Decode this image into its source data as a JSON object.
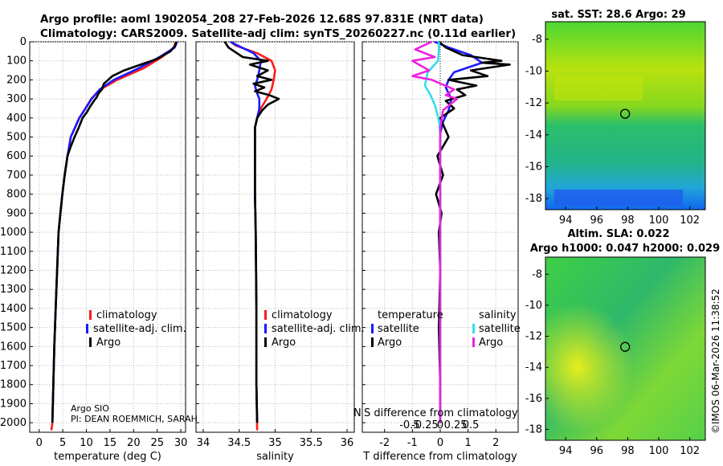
{
  "header": {
    "line1": "Argo profile: aoml 1902054_208 27-Feb-2026 12.68S 97.831E (NRT data)",
    "line2": "Climatology: CARS2009. Satellite-adj clim: synTS_20260227.nc (0.11d earlier)"
  },
  "colors": {
    "climatology": "#ff1a1a",
    "satellite_adj": "#1a1aff",
    "argo": "#000000",
    "sat_T": "#33ddee",
    "argo_S": "#ee22dd"
  },
  "legends": {
    "temp": [
      "climatology",
      "satellite-adj. clim.",
      "Argo"
    ],
    "sal": [
      "climatology",
      "satellite-adj. clim.",
      "Argo"
    ],
    "diff_temp_title": "temperature",
    "diff_temp": [
      "satellite",
      "Argo"
    ],
    "diff_sal_title": "salinity",
    "diff_sal": [
      "satellite",
      "Argo"
    ]
  },
  "notes": {
    "argo_sio": "Argo SIO",
    "pi": "PI: DEAN ROEMMICH, SARAH",
    "s_diff_label": "S difference from climatology",
    "s_diff_ticks": [
      "-0.5",
      "-0.25",
      "0",
      "0.25",
      "0.5"
    ],
    "overflow_char": "N"
  },
  "maps": {
    "sst_title": "sat. SST: 28.6 Argo: 29",
    "sla_title1": "Altim. SLA: 0.022",
    "sla_title2": "Argo h1000: 0.047 h2000: 0.029",
    "lat_ticks": [
      "-8",
      "-10",
      "-12",
      "-14",
      "-16",
      "-18"
    ],
    "lon_ticks": [
      "94",
      "96",
      "98",
      "100",
      "102"
    ],
    "float_lon": 97.831,
    "float_lat": -12.68,
    "credit": "©IMOS 06-Mar-2026 11:38:52"
  },
  "chart_data": [
    {
      "type": "line",
      "panel": "temperature",
      "xlabel": "temperature (deg C)",
      "xlim": [
        -2,
        31
      ],
      "xticks": [
        0,
        5,
        10,
        15,
        20,
        25,
        30
      ],
      "ylim": [
        0,
        2050
      ],
      "yticks": [
        0,
        100,
        200,
        300,
        400,
        500,
        600,
        700,
        800,
        900,
        1000,
        1100,
        1200,
        1300,
        1400,
        1500,
        1600,
        1700,
        1800,
        1900,
        2000
      ],
      "series": [
        {
          "name": "climatology",
          "color": "climatology",
          "x": [
            29.0,
            28.5,
            26.0,
            22.0,
            16.5,
            13.0,
            11.0,
            9.8,
            8.5,
            7.6,
            6.7,
            6.0,
            5.4,
            4.9,
            4.5,
            4.1,
            3.8,
            3.5,
            3.2,
            3.0,
            2.8,
            2.6
          ],
          "y": [
            0,
            30,
            80,
            140,
            200,
            250,
            300,
            350,
            400,
            450,
            500,
            600,
            700,
            800,
            900,
            1000,
            1200,
            1400,
            1600,
            1800,
            2000,
            2040
          ]
        },
        {
          "name": "satellite-adj. clim.",
          "color": "satellite_adj",
          "x": [
            29.2,
            28.7,
            25.5,
            21.0,
            15.8,
            12.8,
            11.1,
            9.8,
            8.5,
            7.6,
            6.7,
            6.0,
            5.4,
            4.9,
            4.5,
            4.1,
            3.8,
            3.5,
            3.2,
            3.0,
            2.8
          ],
          "y": [
            0,
            30,
            80,
            140,
            200,
            250,
            300,
            350,
            400,
            450,
            500,
            600,
            700,
            800,
            900,
            1000,
            1200,
            1400,
            1600,
            1800,
            2000
          ]
        },
        {
          "name": "Argo",
          "color": "argo",
          "x": [
            29.0,
            28.8,
            27.8,
            25.0,
            21.5,
            18.0,
            15.5,
            13.7,
            13.3,
            12.6,
            12.2,
            11.6,
            10.8,
            10.1,
            9.2,
            8.4,
            7.5,
            6.7,
            6.0,
            5.4,
            4.9,
            4.5,
            4.1,
            3.8,
            3.5,
            3.2,
            3.0,
            2.8
          ],
          "y": [
            0,
            20,
            50,
            90,
            120,
            150,
            180,
            220,
            250,
            270,
            290,
            310,
            340,
            370,
            400,
            450,
            500,
            550,
            600,
            700,
            800,
            900,
            1000,
            1200,
            1400,
            1600,
            1800,
            2000
          ]
        }
      ]
    },
    {
      "type": "line",
      "panel": "salinity",
      "xlabel": "salinity",
      "xlim": [
        33.9,
        36.1
      ],
      "xticks": [
        34,
        34.5,
        35,
        35.5,
        36
      ],
      "xtick_labels": [
        "34",
        "34.5",
        "35",
        "35.5",
        "36"
      ],
      "ylim": [
        0,
        2050
      ],
      "series": [
        {
          "name": "climatology",
          "color": "climatology",
          "x": [
            34.38,
            34.45,
            34.75,
            34.95,
            35.0,
            34.98,
            34.95,
            34.88,
            34.8,
            34.75,
            34.72,
            34.72,
            34.72,
            34.73,
            34.74,
            34.74,
            34.75
          ],
          "y": [
            0,
            20,
            60,
            100,
            150,
            200,
            250,
            300,
            350,
            400,
            450,
            600,
            800,
            1000,
            1400,
            1800,
            2040
          ]
        },
        {
          "name": "satellite-adj. clim.",
          "color": "satellite_adj",
          "x": [
            34.38,
            34.48,
            34.7,
            34.8,
            34.78,
            34.75,
            34.72,
            34.74,
            34.78,
            34.78,
            34.75,
            34.72,
            34.72,
            34.72,
            34.73,
            34.74,
            34.74,
            34.75
          ],
          "y": [
            0,
            20,
            60,
            100,
            150,
            200,
            230,
            260,
            300,
            350,
            400,
            450,
            600,
            800,
            1000,
            1400,
            1800,
            2000
          ]
        },
        {
          "name": "Argo",
          "color": "argo",
          "x": [
            34.3,
            34.35,
            34.55,
            34.9,
            34.65,
            34.9,
            34.75,
            34.95,
            34.7,
            34.85,
            34.72,
            34.92,
            35.05,
            34.9,
            34.82,
            34.75,
            34.72,
            34.72,
            34.72,
            34.73,
            34.74,
            34.74,
            34.75
          ],
          "y": [
            0,
            30,
            80,
            100,
            120,
            150,
            180,
            200,
            220,
            240,
            260,
            280,
            300,
            330,
            360,
            400,
            450,
            600,
            800,
            1000,
            1400,
            1800,
            2000
          ]
        }
      ]
    },
    {
      "type": "line",
      "panel": "difference",
      "xlabel": "T difference from climatology",
      "xlim": [
        -2.8,
        2.8
      ],
      "xticks": [
        -2,
        -1,
        0,
        1,
        2
      ],
      "ylim": [
        0,
        2050
      ],
      "series": [
        {
          "name": "temperature satellite",
          "color": "satellite_adj",
          "x": [
            -0.2,
            0.3,
            1.1,
            1.5,
            0.5,
            0.3,
            0.2,
            0.4,
            0.3,
            0.1,
            0.0,
            0.0,
            0.0,
            0.0
          ],
          "y": [
            0,
            30,
            70,
            110,
            160,
            200,
            240,
            300,
            360,
            420,
            480,
            600,
            1000,
            2000
          ]
        },
        {
          "name": "temperature Argo",
          "color": "argo",
          "x": [
            -0.05,
            0.2,
            0.8,
            2.2,
            1.5,
            2.5,
            1.1,
            1.7,
            0.3,
            1.3,
            0.6,
            0.9,
            0.2,
            0.5,
            0.0,
            0.3,
            -0.1,
            0.1,
            -0.15,
            0.05,
            -0.05,
            0.0,
            -0.05,
            0.0,
            0.0
          ],
          "y": [
            0,
            30,
            70,
            100,
            110,
            120,
            150,
            180,
            200,
            230,
            250,
            280,
            310,
            350,
            400,
            500,
            600,
            700,
            800,
            900,
            1000,
            1200,
            1500,
            1800,
            2000
          ]
        },
        {
          "name": "salinity satellite",
          "color": "sat_T",
          "x": [
            -0.05,
            -0.05,
            -0.08,
            -0.45,
            -0.55,
            -0.35,
            -0.2,
            -0.1,
            -0.03,
            0.0,
            0.0,
            0.0
          ],
          "y": [
            0,
            40,
            100,
            160,
            230,
            280,
            330,
            380,
            430,
            500,
            1000,
            2000
          ]
        },
        {
          "name": "salinity Argo",
          "color": "argo_S",
          "x": [
            -0.3,
            -0.9,
            -0.2,
            -1.0,
            -0.4,
            -1.0,
            -0.3,
            0.5,
            0.2,
            0.6,
            0.1,
            0.0,
            0.0,
            0.0
          ],
          "y": [
            0,
            40,
            80,
            100,
            150,
            180,
            200,
            250,
            280,
            300,
            360,
            450,
            1000,
            2000
          ]
        }
      ]
    }
  ]
}
